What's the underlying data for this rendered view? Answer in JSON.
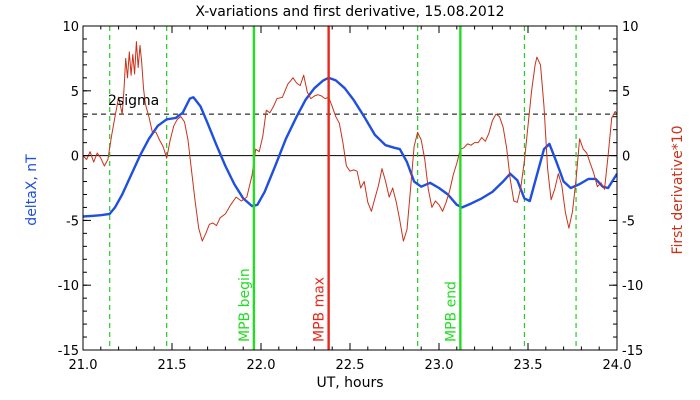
{
  "chart_data": {
    "type": "line",
    "title": "X-variations and first derivative, 15.08.2012",
    "xlabel": "UT, hours",
    "ylabel_left": "deltaX, nT",
    "ylabel_right": "First derivative*10",
    "xlim": [
      21.0,
      24.0
    ],
    "ylim_left": [
      -15,
      10
    ],
    "ylim_right": [
      -15,
      10
    ],
    "xticks": [
      21.0,
      21.5,
      22.0,
      22.5,
      23.0,
      23.5,
      24.0
    ],
    "xtick_labels": [
      "21.0",
      "21.5",
      "22.0",
      "22.5",
      "23.0",
      "23.5",
      "24.0"
    ],
    "yticks": [
      -15,
      -10,
      -5,
      0,
      5,
      10
    ],
    "ytick_labels": [
      "-15",
      "-10",
      "-5",
      "0",
      "5",
      "10"
    ],
    "zero_line": 0,
    "sigma_level": 3.2,
    "sigma_label": "2sigma",
    "vertical_lines": {
      "green_dashed": [
        21.15,
        21.47,
        22.88,
        23.48,
        23.77
      ],
      "green_solid": [
        {
          "x": 21.96,
          "label": "MPB begin"
        },
        {
          "x": 23.12,
          "label": "MPB end"
        }
      ],
      "red_solid": [
        {
          "x": 22.38,
          "label": "MPB max"
        }
      ]
    },
    "series": [
      {
        "color": "#1f4fe0",
        "axis": "left",
        "points": [
          [
            21.0,
            -4.7
          ],
          [
            21.05,
            -4.65
          ],
          [
            21.1,
            -4.6
          ],
          [
            21.15,
            -4.5
          ],
          [
            21.18,
            -4.0
          ],
          [
            21.22,
            -3.0
          ],
          [
            21.27,
            -1.5
          ],
          [
            21.32,
            0.0
          ],
          [
            21.37,
            1.3
          ],
          [
            21.42,
            2.3
          ],
          [
            21.47,
            2.8
          ],
          [
            21.52,
            2.9
          ],
          [
            21.56,
            3.3
          ],
          [
            21.6,
            4.4
          ],
          [
            21.62,
            4.5
          ],
          [
            21.66,
            3.8
          ],
          [
            21.7,
            2.5
          ],
          [
            21.75,
            0.8
          ],
          [
            21.8,
            -0.8
          ],
          [
            21.85,
            -2.2
          ],
          [
            21.9,
            -3.3
          ],
          [
            21.95,
            -3.9
          ],
          [
            21.98,
            -3.8
          ],
          [
            22.02,
            -2.8
          ],
          [
            22.08,
            -0.8
          ],
          [
            22.14,
            1.3
          ],
          [
            22.2,
            3.0
          ],
          [
            22.25,
            4.3
          ],
          [
            22.3,
            5.2
          ],
          [
            22.35,
            5.8
          ],
          [
            22.38,
            6.0
          ],
          [
            22.42,
            5.8
          ],
          [
            22.47,
            5.2
          ],
          [
            22.52,
            4.3
          ],
          [
            22.58,
            3.0
          ],
          [
            22.64,
            1.6
          ],
          [
            22.7,
            0.8
          ],
          [
            22.75,
            0.6
          ],
          [
            22.78,
            0.5
          ],
          [
            22.82,
            -0.5
          ],
          [
            22.86,
            -2.0
          ],
          [
            22.9,
            -2.4
          ],
          [
            22.95,
            -2.1
          ],
          [
            23.0,
            -2.5
          ],
          [
            23.05,
            -3.0
          ],
          [
            23.1,
            -3.8
          ],
          [
            23.13,
            -4.0
          ],
          [
            23.18,
            -3.7
          ],
          [
            23.24,
            -3.3
          ],
          [
            23.3,
            -2.8
          ],
          [
            23.36,
            -2.0
          ],
          [
            23.4,
            -1.4
          ],
          [
            23.44,
            -1.9
          ],
          [
            23.48,
            -3.3
          ],
          [
            23.51,
            -3.5
          ],
          [
            23.55,
            -1.5
          ],
          [
            23.59,
            0.5
          ],
          [
            23.62,
            0.9
          ],
          [
            23.66,
            -0.5
          ],
          [
            23.7,
            -2.0
          ],
          [
            23.74,
            -2.5
          ],
          [
            23.79,
            -2.2
          ],
          [
            23.84,
            -1.8
          ],
          [
            23.88,
            -1.8
          ],
          [
            23.92,
            -2.4
          ],
          [
            23.95,
            -2.5
          ],
          [
            24.0,
            -1.4
          ]
        ]
      },
      {
        "color": "#c8321a",
        "axis": "right",
        "points": [
          [
            21.0,
            0.0
          ],
          [
            21.02,
            -0.3
          ],
          [
            21.04,
            0.3
          ],
          [
            21.06,
            -0.5
          ],
          [
            21.08,
            0.2
          ],
          [
            21.1,
            -0.2
          ],
          [
            21.12,
            -0.8
          ],
          [
            21.14,
            -0.3
          ],
          [
            21.16,
            1.5
          ],
          [
            21.18,
            3.0
          ],
          [
            21.2,
            4.5
          ],
          [
            21.22,
            3.2
          ],
          [
            21.23,
            5.0
          ],
          [
            21.24,
            7.5
          ],
          [
            21.25,
            6.0
          ],
          [
            21.26,
            8.0
          ],
          [
            21.27,
            6.2
          ],
          [
            21.28,
            7.8
          ],
          [
            21.29,
            6.3
          ],
          [
            21.3,
            8.8
          ],
          [
            21.31,
            6.8
          ],
          [
            21.32,
            8.5
          ],
          [
            21.33,
            7.2
          ],
          [
            21.34,
            5.2
          ],
          [
            21.35,
            4.0
          ],
          [
            21.37,
            3.0
          ],
          [
            21.39,
            1.8
          ],
          [
            21.41,
            1.8
          ],
          [
            21.43,
            1.2
          ],
          [
            21.45,
            0.7
          ],
          [
            21.47,
            -0.2
          ],
          [
            21.49,
            1.2
          ],
          [
            21.51,
            2.3
          ],
          [
            21.53,
            2.8
          ],
          [
            21.55,
            3.0
          ],
          [
            21.57,
            2.6
          ],
          [
            21.59,
            1.2
          ],
          [
            21.61,
            -1.2
          ],
          [
            21.63,
            -3.5
          ],
          [
            21.65,
            -5.6
          ],
          [
            21.67,
            -6.6
          ],
          [
            21.69,
            -6.0
          ],
          [
            21.71,
            -5.3
          ],
          [
            21.73,
            -5.2
          ],
          [
            21.75,
            -5.4
          ],
          [
            21.77,
            -4.8
          ],
          [
            21.8,
            -4.5
          ],
          [
            21.83,
            -3.8
          ],
          [
            21.86,
            -3.2
          ],
          [
            21.89,
            -3.5
          ],
          [
            21.92,
            -3.2
          ],
          [
            21.95,
            -1.5
          ],
          [
            21.97,
            0.5
          ],
          [
            21.99,
            0.3
          ],
          [
            22.01,
            1.5
          ],
          [
            22.03,
            3.5
          ],
          [
            22.05,
            3.3
          ],
          [
            22.07,
            3.8
          ],
          [
            22.09,
            4.4
          ],
          [
            22.12,
            4.5
          ],
          [
            22.15,
            5.5
          ],
          [
            22.18,
            6.0
          ],
          [
            22.2,
            5.6
          ],
          [
            22.22,
            5.4
          ],
          [
            22.24,
            6.2
          ],
          [
            22.26,
            4.9
          ],
          [
            22.28,
            4.4
          ],
          [
            22.3,
            4.6
          ],
          [
            22.32,
            4.7
          ],
          [
            22.34,
            4.6
          ],
          [
            22.36,
            4.4
          ],
          [
            22.38,
            4.5
          ],
          [
            22.4,
            3.8
          ],
          [
            22.42,
            3.0
          ],
          [
            22.44,
            2.5
          ],
          [
            22.46,
            1.0
          ],
          [
            22.48,
            -0.8
          ],
          [
            22.5,
            -1.2
          ],
          [
            22.52,
            -1.1
          ],
          [
            22.54,
            -1.2
          ],
          [
            22.56,
            -2.5
          ],
          [
            22.58,
            -2.0
          ],
          [
            22.6,
            -3.6
          ],
          [
            22.62,
            -4.3
          ],
          [
            22.64,
            -3.3
          ],
          [
            22.66,
            -2.3
          ],
          [
            22.68,
            -1.0
          ],
          [
            22.7,
            -2.0
          ],
          [
            22.72,
            -3.2
          ],
          [
            22.74,
            -2.5
          ],
          [
            22.76,
            -3.6
          ],
          [
            22.78,
            -5.0
          ],
          [
            22.8,
            -6.6
          ],
          [
            22.82,
            -5.7
          ],
          [
            22.84,
            -2.6
          ],
          [
            22.86,
            0.7
          ],
          [
            22.88,
            1.8
          ],
          [
            22.9,
            1.2
          ],
          [
            22.92,
            -0.3
          ],
          [
            22.94,
            -2.6
          ],
          [
            22.96,
            -4.0
          ],
          [
            22.98,
            -3.5
          ],
          [
            23.0,
            -3.8
          ],
          [
            23.02,
            -4.3
          ],
          [
            23.04,
            -3.6
          ],
          [
            23.06,
            -2.7
          ],
          [
            23.08,
            -1.5
          ],
          [
            23.1,
            -0.6
          ],
          [
            23.12,
            0.5
          ],
          [
            23.14,
            0.6
          ],
          [
            23.16,
            0.9
          ],
          [
            23.18,
            0.8
          ],
          [
            23.2,
            1.0
          ],
          [
            23.22,
            1.0
          ],
          [
            23.24,
            1.4
          ],
          [
            23.26,
            1.1
          ],
          [
            23.28,
            1.7
          ],
          [
            23.3,
            2.7
          ],
          [
            23.32,
            3.2
          ],
          [
            23.34,
            3.0
          ],
          [
            23.36,
            2.2
          ],
          [
            23.38,
            0.6
          ],
          [
            23.4,
            -1.8
          ],
          [
            23.42,
            -3.5
          ],
          [
            23.44,
            -3.6
          ],
          [
            23.46,
            -2.4
          ],
          [
            23.48,
            -0.4
          ],
          [
            23.5,
            2.3
          ],
          [
            23.52,
            5.0
          ],
          [
            23.54,
            7.0
          ],
          [
            23.55,
            7.6
          ],
          [
            23.57,
            7.0
          ],
          [
            23.59,
            3.8
          ],
          [
            23.61,
            -1.0
          ],
          [
            23.63,
            -3.4
          ],
          [
            23.65,
            -2.6
          ],
          [
            23.67,
            -1.4
          ],
          [
            23.69,
            -2.3
          ],
          [
            23.71,
            -4.4
          ],
          [
            23.73,
            -5.6
          ],
          [
            23.75,
            -4.3
          ],
          [
            23.77,
            -1.8
          ],
          [
            23.79,
            1.3
          ],
          [
            23.81,
            0.5
          ],
          [
            23.83,
            0.2
          ],
          [
            23.85,
            -0.6
          ],
          [
            23.87,
            -1.4
          ],
          [
            23.89,
            -2.4
          ],
          [
            23.91,
            -2.1
          ],
          [
            23.93,
            -2.6
          ],
          [
            23.95,
            0.0
          ],
          [
            23.97,
            2.9
          ],
          [
            23.99,
            3.4
          ],
          [
            24.0,
            3.2
          ]
        ]
      }
    ]
  }
}
